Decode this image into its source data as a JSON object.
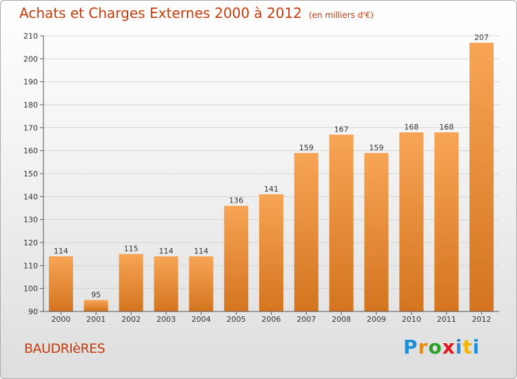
{
  "title": "Achats et Charges Externes 2000 à 2012",
  "unit": "(en milliers d'€)",
  "commune": "BAUDRIèRES",
  "logo": {
    "text": "Proxiti",
    "letters": [
      "P",
      "r",
      "o",
      "x",
      "i",
      "t",
      "i"
    ]
  },
  "colors": {
    "bar_light": "#f7a555",
    "bar_dark": "#d4741f",
    "title": "#c43b0c"
  },
  "chart_data": {
    "type": "bar",
    "categories": [
      "2000",
      "2001",
      "2002",
      "2003",
      "2004",
      "2005",
      "2006",
      "2007",
      "2008",
      "2009",
      "2010",
      "2011",
      "2012"
    ],
    "values": [
      114,
      95,
      115,
      114,
      114,
      136,
      141,
      159,
      167,
      159,
      168,
      168,
      207
    ],
    "data_labels": [
      "114",
      "95",
      "115",
      "114",
      "114",
      "136",
      "141",
      "159",
      "167",
      "159",
      "168",
      "168",
      "207"
    ],
    "ylim": [
      90,
      210
    ],
    "yticks": [
      90,
      100,
      110,
      120,
      130,
      140,
      150,
      160,
      170,
      180,
      190,
      200,
      210
    ],
    "grid": true
  }
}
